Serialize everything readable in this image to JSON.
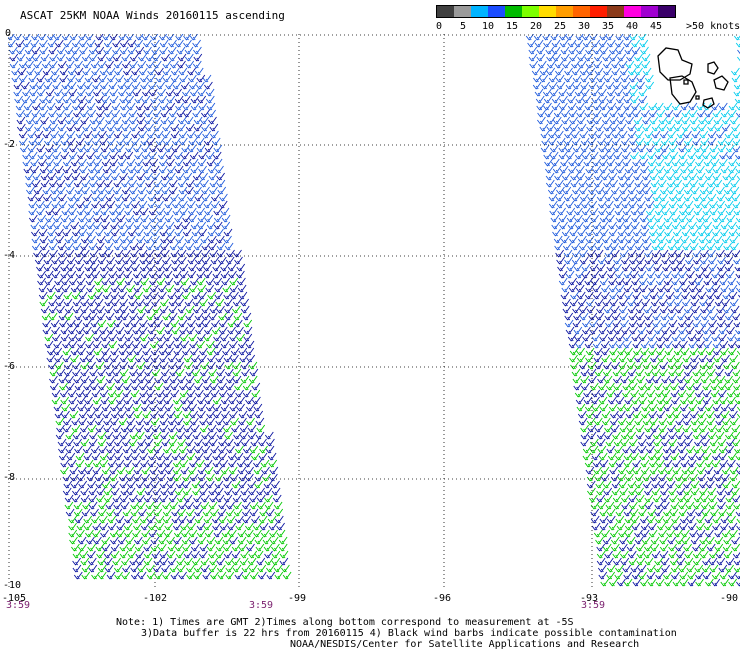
{
  "title": "ASCAT 25KM NOAA Winds 20160115 ascending",
  "legend": {
    "colors": [
      "#404040",
      "#9a9a9a",
      "#00b4ff",
      "#1a4cff",
      "#00bb00",
      "#7cff00",
      "#ffdc00",
      "#ff9d00",
      "#ff6400",
      "#ff1e00",
      "#8b3a1a",
      "#ff00e0",
      "#a000d0",
      "#3a006a"
    ],
    "labels": [
      "0",
      "5",
      "10",
      "15",
      "20",
      "25",
      "30",
      "35",
      "40",
      "45",
      ">50 knots"
    ]
  },
  "lat_labels": [
    "0",
    "-2",
    "-4",
    "-6",
    "-8",
    "-10"
  ],
  "lon_labels": [
    "-105",
    "-102",
    "-99",
    "-96",
    "-93",
    "-90"
  ],
  "time_labels": [
    "3:59",
    "3:59",
    "3:59"
  ],
  "notes": [
    "Note: 1) Times are GMT 2)Times along bottom correspond to measurement at -5S",
    "3)Data buffer is 22 hrs from 20160115 4) Black wind barbs indicate possible contamination",
    "NOAA/NESDIS/Center for Satellite Applications and Research"
  ],
  "map": {
    "lon_range": [
      -105,
      -90
    ],
    "lat_range": [
      -10,
      0
    ],
    "grid_lons": [
      -102,
      -99,
      -96,
      -93
    ],
    "grid_lats": [
      -2,
      -4,
      -6,
      -8
    ],
    "swath_colors": {
      "fast": "#00ccee",
      "medium": "#1e5adc",
      "slow": "#0a14a0",
      "calm": "#00c800"
    }
  }
}
